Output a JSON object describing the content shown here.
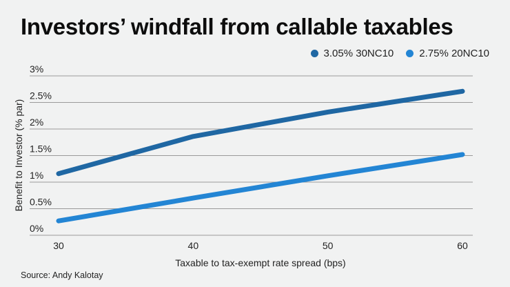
{
  "header": {
    "title": "Investors’ windfall from callable taxables"
  },
  "source": "Source: Andy Kalotay",
  "chart_data": {
    "type": "line",
    "title": "Investors’ windfall from callable taxables",
    "xlabel": "Taxable to tax-exempt rate spread (bps)",
    "ylabel": "Benefit to Investor (% par)",
    "x": [
      30,
      40,
      50,
      60
    ],
    "xlim": [
      30,
      60
    ],
    "ylim": [
      0,
      3
    ],
    "x_ticks": [
      "30",
      "40",
      "50",
      "60"
    ],
    "y_ticks": [
      {
        "value": 0,
        "label": "0%"
      },
      {
        "value": 0.5,
        "label": "0.5%"
      },
      {
        "value": 1,
        "label": "1%"
      },
      {
        "value": 1.5,
        "label": "1.5%"
      },
      {
        "value": 2,
        "label": "2%"
      },
      {
        "value": 2.5,
        "label": "2.5%"
      },
      {
        "value": 3,
        "label": "3%"
      }
    ],
    "grid": "horizontal",
    "legend_position": "top-right",
    "series": [
      {
        "name": "3.05% 30NC10",
        "color": "#1f67a3",
        "values": [
          1.16,
          1.86,
          2.32,
          2.71
        ]
      },
      {
        "name": "2.75% 20NC10",
        "color": "#2385d4",
        "values": [
          0.27,
          0.7,
          1.12,
          1.52
        ]
      }
    ],
    "gridline_color": "#9a9a9a"
  }
}
